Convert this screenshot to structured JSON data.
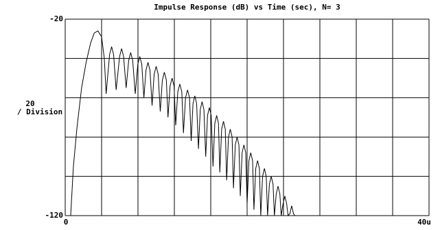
{
  "chart_data": {
    "type": "line",
    "title": "Impulse Response (dB) vs Time (sec), N= 3",
    "y_label": [
      "20",
      "/ Division"
    ],
    "xlim": [
      0,
      4e-05
    ],
    "xticks": [
      0,
      {
        "value": 4e-05,
        "label": "40u"
      }
    ],
    "xgrid": [
      4e-06,
      8e-06,
      1.2e-05,
      1.6e-05,
      2e-05,
      2.4e-05,
      2.8e-05,
      3.2e-05,
      3.6e-05
    ],
    "ylim": [
      -120,
      -20
    ],
    "yticks": [
      -20,
      -120
    ],
    "ygrid": [
      -40,
      -60,
      -80,
      -100
    ],
    "grid": true,
    "series": [
      {
        "color": "#000000",
        "x": [
          6e-07,
          9e-07,
          1.3e-06,
          1.8e-06,
          2.3e-06,
          2.8e-06,
          3.2e-06,
          3.6e-06,
          4e-06,
          4.3e-06,
          4.5e-06,
          4.88e-06,
          5.1e-06,
          5.32e-06,
          5.6e-06,
          5.98e-06,
          6.2e-06,
          6.42e-06,
          6.7e-06,
          6.98e-06,
          7.2e-06,
          7.42e-06,
          7.7e-06,
          7.98e-06,
          8.2e-06,
          8.42e-06,
          8.65e-06,
          8.88e-06,
          9.1e-06,
          9.32e-06,
          9.55e-06,
          9.78e-06,
          1e-05,
          1.022e-05,
          1.045e-05,
          1.068e-05,
          1.09e-05,
          1.112e-05,
          1.13e-05,
          1.153e-05,
          1.175e-05,
          1.197e-05,
          1.215e-05,
          1.238e-05,
          1.26e-05,
          1.282e-05,
          1.3e-05,
          1.323e-05,
          1.345e-05,
          1.367e-05,
          1.385e-05,
          1.405e-05,
          1.425e-05,
          1.445e-05,
          1.465e-05,
          1.485e-05,
          1.505e-05,
          1.525e-05,
          1.545e-05,
          1.565e-05,
          1.585e-05,
          1.605e-05,
          1.625e-05,
          1.645e-05,
          1.665e-05,
          1.685e-05,
          1.7e-05,
          1.72e-05,
          1.74e-05,
          1.76e-05,
          1.775e-05,
          1.795e-05,
          1.815e-05,
          1.835e-05,
          1.85e-05,
          1.87e-05,
          1.89e-05,
          1.91e-05,
          1.925e-05,
          1.945e-05,
          1.965e-05,
          1.985e-05,
          2e-05,
          2.02e-05,
          2.04e-05,
          2.06e-05,
          2.075e-05,
          2.095e-05,
          2.115e-05,
          2.135e-05,
          2.15e-05,
          2.17e-05,
          2.19e-05,
          2.21e-05,
          2.225e-05,
          2.245e-05,
          2.265e-05,
          2.285e-05,
          2.3e-05,
          2.32e-05,
          2.34e-05,
          2.36e-05,
          2.375e-05,
          2.395e-05,
          2.415e-05,
          2.435e-05,
          2.45e-05,
          2.47e-05,
          2.49e-05,
          2.51e-05,
          2.525e-05
        ],
        "values": [
          -120,
          -95,
          -75,
          -55,
          -42,
          -32,
          -27,
          -26,
          -29,
          -40,
          -58,
          -38,
          -34,
          -38,
          -56,
          -39,
          -35,
          -39,
          -55,
          -41,
          -37,
          -41,
          -58,
          -43,
          -39,
          -43,
          -60,
          -46,
          -42,
          -46,
          -64,
          -48,
          -44,
          -48,
          -67,
          -51,
          -47,
          -51,
          -70,
          -54,
          -50,
          -54,
          -74,
          -57,
          -53,
          -57,
          -78,
          -60,
          -56,
          -60,
          -82,
          -63,
          -59,
          -63,
          -86,
          -66,
          -62,
          -66,
          -90,
          -69,
          -65,
          -69,
          -95,
          -73,
          -69,
          -73,
          -98,
          -76,
          -72,
          -76,
          -102,
          -80,
          -76,
          -80,
          -106,
          -84,
          -80,
          -84,
          -110,
          -88,
          -84,
          -88,
          -114,
          -92,
          -88,
          -92,
          -117,
          -96,
          -92,
          -96,
          -120,
          -100,
          -96,
          -100,
          -120,
          -104,
          -100,
          -104,
          -120,
          -109,
          -105,
          -109,
          -120,
          -114,
          -110,
          -114,
          -120,
          -119,
          -115,
          -119,
          -120
        ]
      }
    ]
  }
}
